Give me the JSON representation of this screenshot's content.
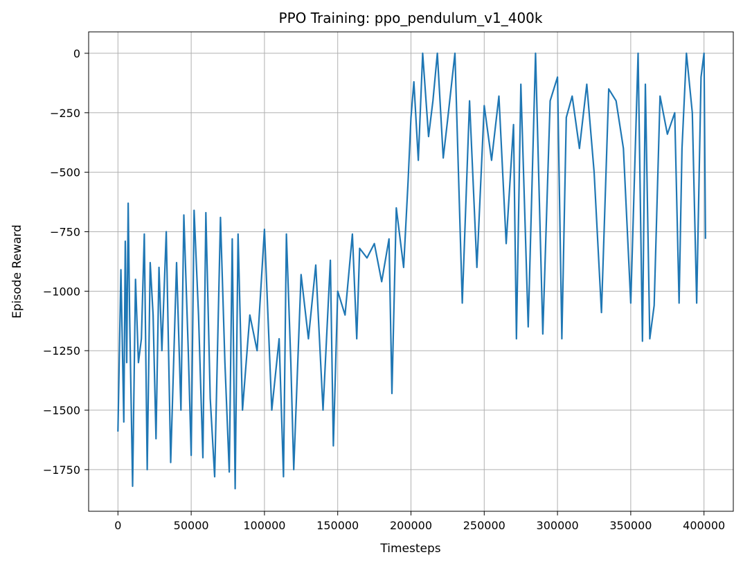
{
  "chart_data": {
    "type": "line",
    "title": "PPO Training: ppo_pendulum_v1_400k",
    "xlabel": "Timesteps",
    "ylabel": "Episode Reward",
    "xlim": [
      -20000,
      420000
    ],
    "ylim": [
      -1925,
      90
    ],
    "xticks": [
      0,
      50000,
      100000,
      150000,
      200000,
      250000,
      300000,
      350000,
      400000
    ],
    "yticks": [
      0,
      -250,
      -500,
      -750,
      -1000,
      -1250,
      -1500,
      -1750
    ],
    "xtick_labels": [
      "0",
      "50000",
      "100000",
      "150000",
      "200000",
      "250000",
      "300000",
      "350000",
      "400000"
    ],
    "ytick_labels": [
      "0",
      "−250",
      "−500",
      "−750",
      "−1000",
      "−1250",
      "−1500",
      "−1750"
    ],
    "grid": true,
    "line_color": "#1f77b4",
    "series": [
      {
        "x": [
          0,
          2000,
          4000,
          5000,
          6000,
          7000,
          8000,
          10000,
          12000,
          14000,
          16000,
          18000,
          20000,
          22000,
          24000,
          26000,
          28000,
          30000,
          33000,
          36000,
          40000,
          43000,
          45000,
          48000,
          50000,
          52000,
          55000,
          58000,
          60000,
          63000,
          66000,
          70000,
          73000,
          76000,
          78000,
          80000,
          82000,
          85000,
          90000,
          95000,
          100000,
          105000,
          110000,
          113000,
          115000,
          118000,
          120000,
          125000,
          130000,
          135000,
          140000,
          145000,
          147000,
          150000,
          155000,
          160000,
          163000,
          165000,
          170000,
          175000,
          180000,
          185000,
          187000,
          190000,
          195000,
          198000,
          200000,
          202000,
          205000,
          208000,
          212000,
          215000,
          218000,
          222000,
          225000,
          230000,
          235000,
          240000,
          245000,
          250000,
          255000,
          260000,
          265000,
          270000,
          272000,
          275000,
          280000,
          285000,
          290000,
          295000,
          300000,
          303000,
          306000,
          310000,
          315000,
          320000,
          325000,
          330000,
          335000,
          340000,
          345000,
          350000,
          355000,
          358000,
          360000,
          363000,
          366000,
          370000,
          375000,
          380000,
          383000,
          385000,
          388000,
          392000,
          395000,
          398000,
          400000,
          401000
        ],
        "y": [
          -1590,
          -910,
          -1550,
          -790,
          -1300,
          -630,
          -1100,
          -1820,
          -950,
          -1300,
          -1200,
          -760,
          -1750,
          -880,
          -1100,
          -1620,
          -900,
          -1250,
          -750,
          -1720,
          -880,
          -1500,
          -680,
          -1250,
          -1690,
          -660,
          -1100,
          -1700,
          -670,
          -1450,
          -1780,
          -690,
          -1300,
          -1760,
          -780,
          -1830,
          -760,
          -1500,
          -1100,
          -1250,
          -740,
          -1500,
          -1200,
          -1780,
          -760,
          -1300,
          -1750,
          -930,
          -1200,
          -890,
          -1500,
          -870,
          -1650,
          -1000,
          -1100,
          -760,
          -1200,
          -820,
          -860,
          -800,
          -960,
          -780,
          -1430,
          -650,
          -900,
          -540,
          -270,
          -120,
          -450,
          0,
          -350,
          -200,
          0,
          -440,
          -280,
          0,
          -1050,
          -200,
          -900,
          -220,
          -450,
          -180,
          -800,
          -300,
          -1200,
          -130,
          -1150,
          0,
          -1180,
          -200,
          -100,
          -1200,
          -270,
          -180,
          -400,
          -130,
          -500,
          -1090,
          -150,
          -200,
          -400,
          -1050,
          0,
          -1210,
          -130,
          -1200,
          -1060,
          -180,
          -340,
          -250,
          -1050,
          -400,
          0,
          -250,
          -1050,
          -100,
          0,
          -780
        ]
      }
    ]
  }
}
